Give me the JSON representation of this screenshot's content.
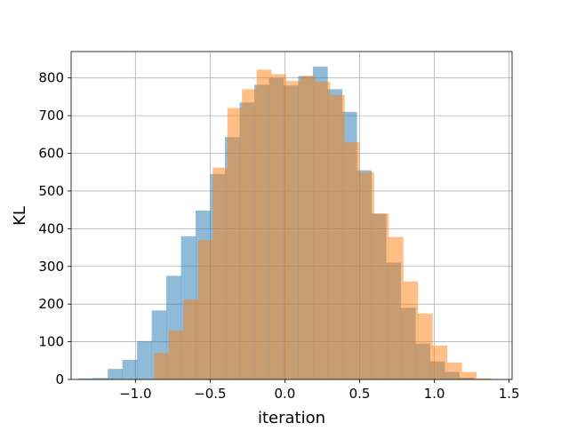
{
  "chart_data": {
    "type": "bar",
    "subtype": "histogram",
    "title": "",
    "xlabel": "iteration",
    "ylabel": "KL",
    "xlim": [
      -1.43,
      1.52
    ],
    "ylim": [
      0,
      870
    ],
    "xticks": [
      -1.0,
      -0.5,
      0.0,
      0.5,
      1.0,
      1.5
    ],
    "xtick_labels": [
      "−1.0",
      "−0.5",
      "0.0",
      "0.5",
      "1.0",
      "1.5"
    ],
    "yticks": [
      0,
      100,
      200,
      300,
      400,
      500,
      600,
      700,
      800
    ],
    "ytick_labels": [
      "0",
      "100",
      "200",
      "300",
      "400",
      "500",
      "600",
      "700",
      "800"
    ],
    "grid": true,
    "legend": "none",
    "series": [
      {
        "color": "#1f77b4",
        "opacity": 0.5,
        "bin_edges": [
          -1.381,
          -1.283,
          -1.185,
          -1.087,
          -0.989,
          -0.891,
          -0.793,
          -0.695,
          -0.597,
          -0.499,
          -0.401,
          -0.303,
          -0.205,
          -0.107,
          -0.009,
          0.089,
          0.187,
          0.285,
          0.383,
          0.481,
          0.579,
          0.677,
          0.775,
          0.873,
          0.971,
          1.069,
          1.167,
          1.265
        ],
        "counts": [
          3,
          4,
          28,
          52,
          102,
          183,
          275,
          380,
          448,
          545,
          643,
          735,
          782,
          800,
          780,
          805,
          830,
          770,
          710,
          555,
          440,
          310,
          190,
          95,
          48,
          20,
          5
        ]
      },
      {
        "color": "#ff7f0e",
        "opacity": 0.5,
        "bin_edges": [
          -0.875,
          -0.777,
          -0.679,
          -0.581,
          -0.483,
          -0.385,
          -0.287,
          -0.189,
          -0.091,
          0.007,
          0.105,
          0.203,
          0.301,
          0.399,
          0.497,
          0.595,
          0.693,
          0.791,
          0.889,
          0.987,
          1.085,
          1.183,
          1.281,
          1.379
        ],
        "counts": [
          70,
          130,
          212,
          370,
          562,
          720,
          770,
          822,
          810,
          792,
          805,
          790,
          755,
          630,
          550,
          440,
          378,
          260,
          175,
          90,
          45,
          20,
          3
        ]
      }
    ]
  }
}
